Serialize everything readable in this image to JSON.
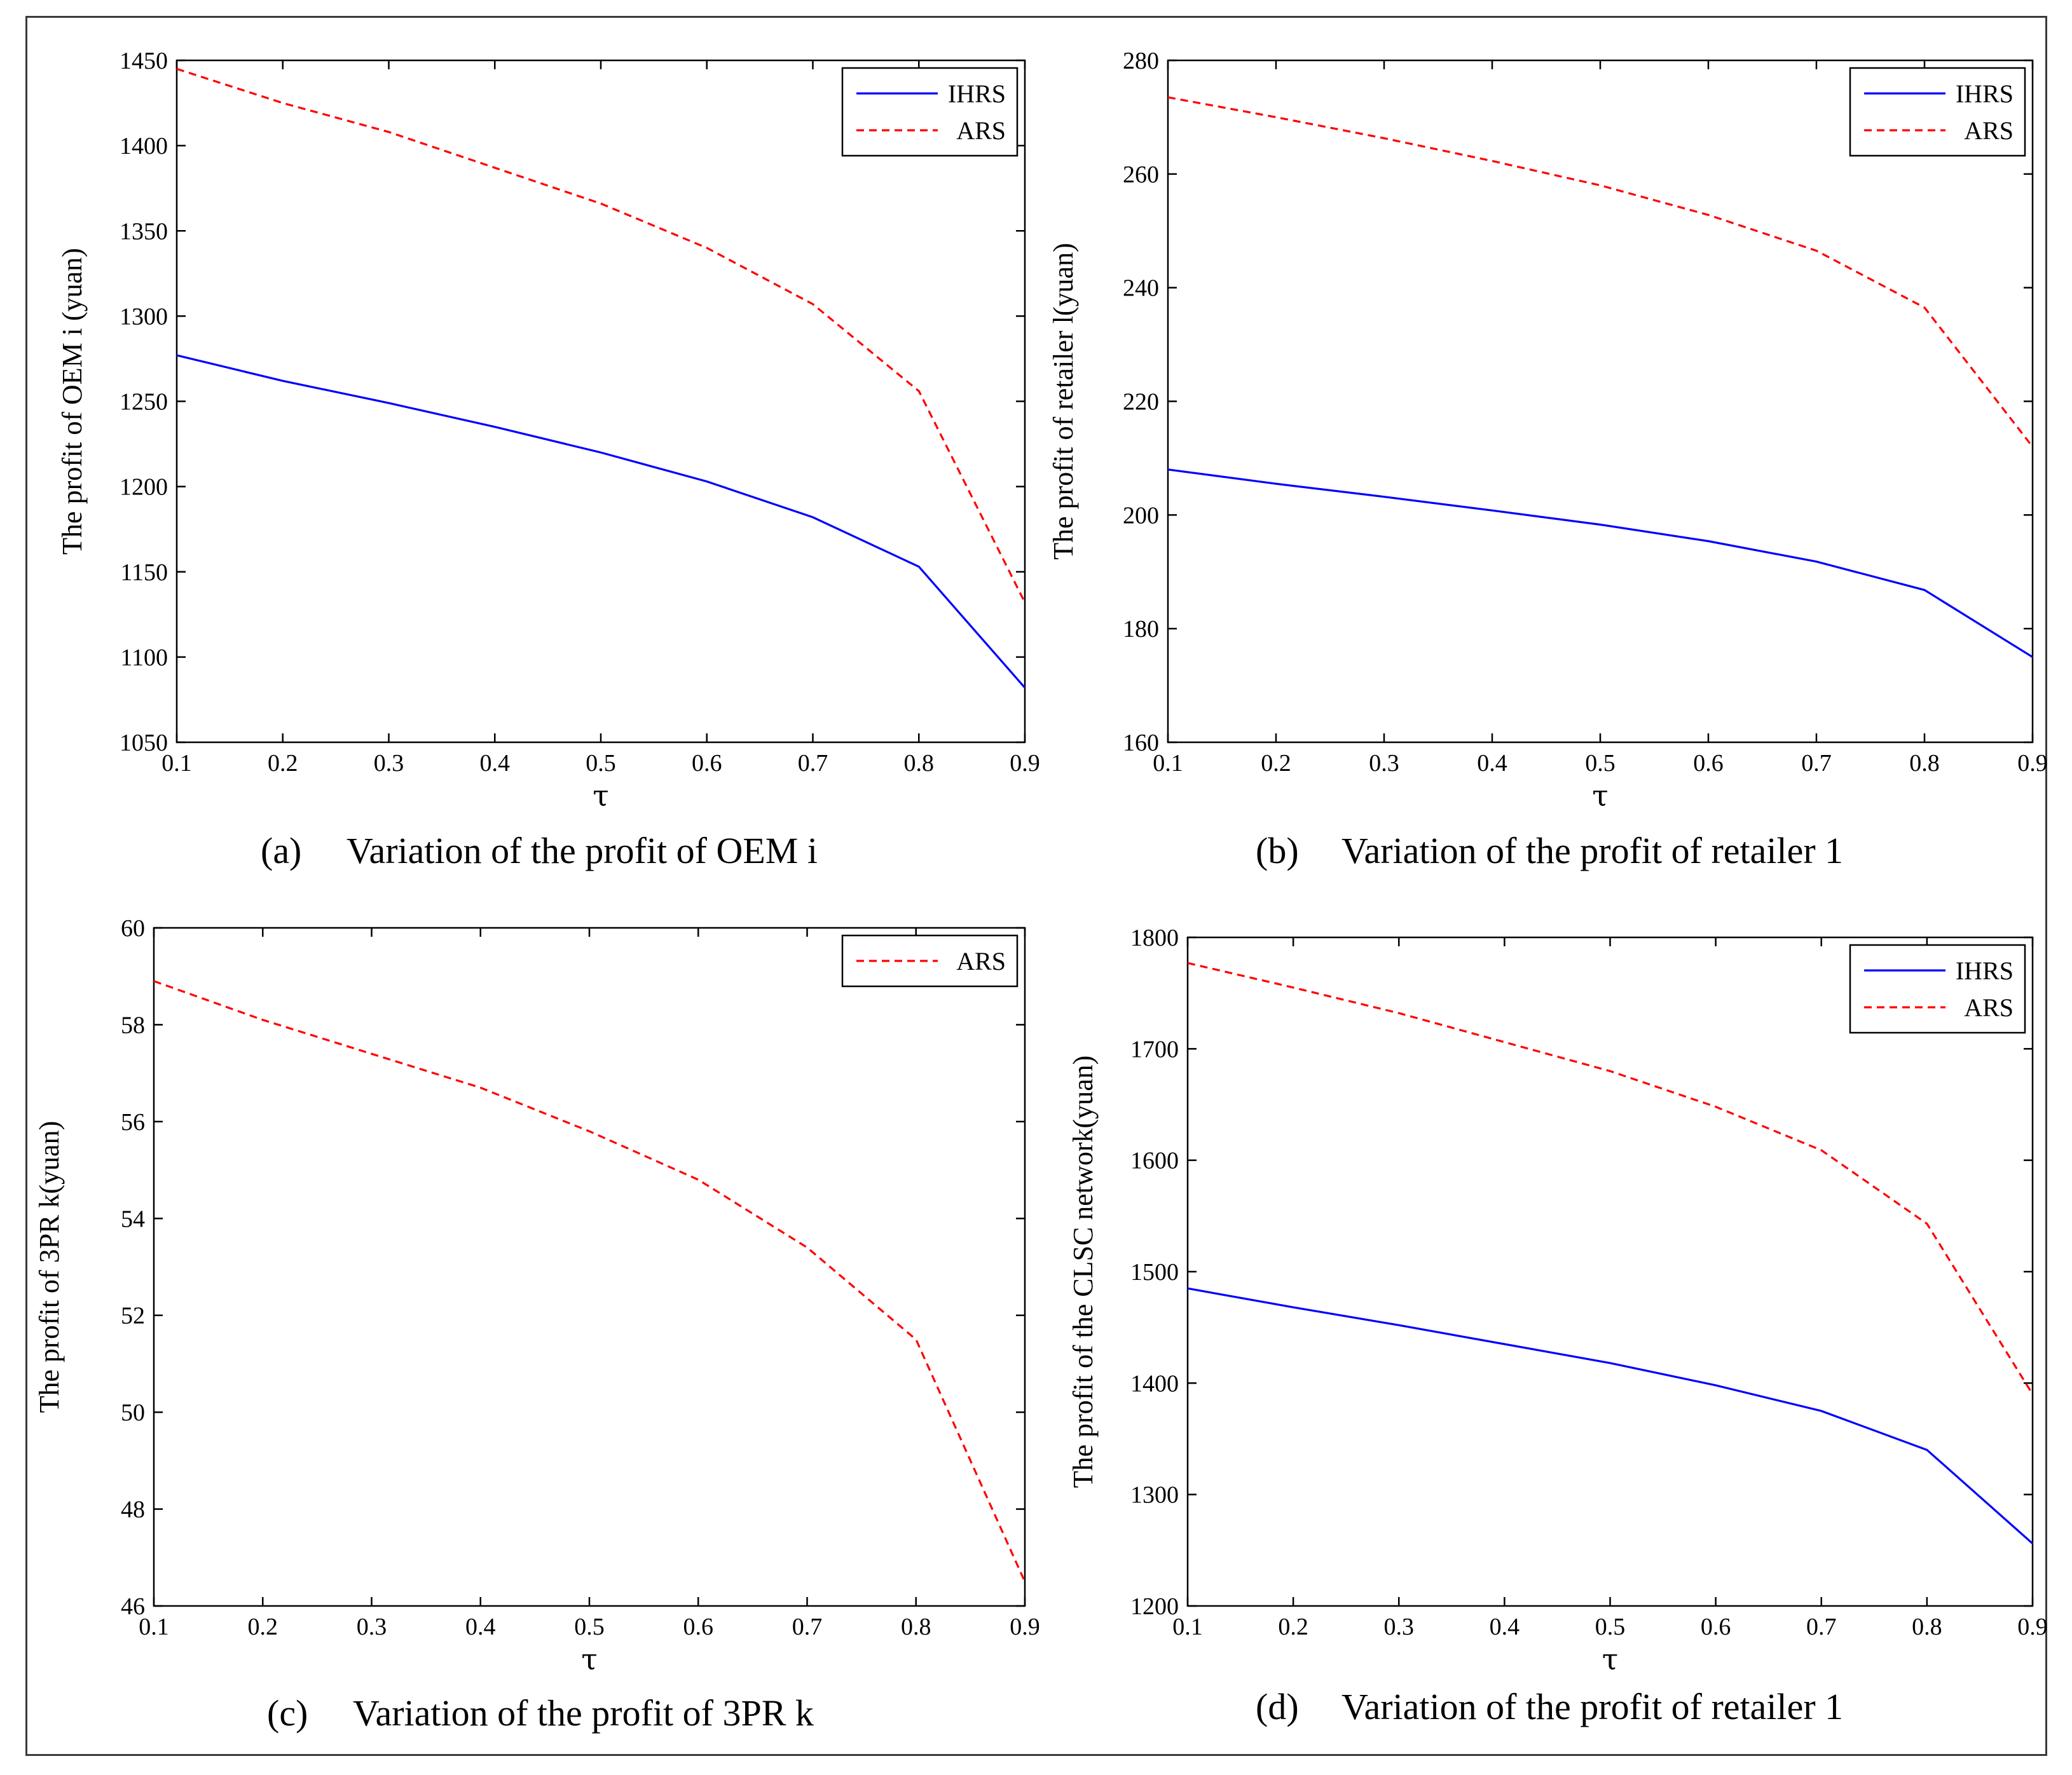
{
  "chart_data": [
    {
      "id": "a",
      "type": "line",
      "caption_tag": "(a)",
      "caption": "Variation of the profit of OEM i",
      "xlabel": "τ",
      "ylabel": "The profit of OEM i (yuan)",
      "x": [
        0.1,
        0.2,
        0.3,
        0.4,
        0.5,
        0.6,
        0.7,
        0.8,
        0.9
      ],
      "xlim": [
        0.1,
        0.9
      ],
      "ylim": [
        1050,
        1450
      ],
      "x_ticks": [
        "0.1",
        "0.2",
        "0.3",
        "0.4",
        "0.5",
        "0.6",
        "0.7",
        "0.8",
        "0.9"
      ],
      "y_ticks": [
        1050,
        1100,
        1150,
        1200,
        1250,
        1300,
        1350,
        1400,
        1450
      ],
      "legend_position": "top-right",
      "series": [
        {
          "name": "IHRS",
          "color": "#0000ff",
          "style": "solid",
          "values": [
            1277,
            1262,
            1249,
            1235,
            1220,
            1203,
            1182,
            1153,
            1082
          ]
        },
        {
          "name": "ARS",
          "color": "#ff0000",
          "style": "dashed",
          "values": [
            1445,
            1425,
            1408,
            1387,
            1366,
            1340,
            1307,
            1256,
            1132
          ]
        }
      ]
    },
    {
      "id": "b",
      "type": "line",
      "caption_tag": "(b)",
      "caption": "Variation of the profit of retailer 1",
      "xlabel": "τ",
      "ylabel": "The profit of retailer l(yuan)",
      "x": [
        0.1,
        0.2,
        0.3,
        0.4,
        0.5,
        0.6,
        0.7,
        0.8,
        0.9
      ],
      "xlim": [
        0.1,
        0.9
      ],
      "ylim": [
        160,
        280
      ],
      "x_ticks": [
        "0.1",
        "0.2",
        "0.3",
        "0.4",
        "0.5",
        "0.6",
        "0.7",
        "0.8",
        "0.9"
      ],
      "y_ticks": [
        160,
        180,
        200,
        220,
        240,
        260,
        280
      ],
      "legend_position": "top-right",
      "series": [
        {
          "name": "IHRS",
          "color": "#0000ff",
          "style": "solid",
          "values": [
            208,
            205.5,
            203.2,
            200.8,
            198.3,
            195.4,
            191.8,
            186.8,
            175
          ]
        },
        {
          "name": "ARS",
          "color": "#ff0000",
          "style": "dashed",
          "values": [
            273.5,
            270,
            266.3,
            262.3,
            258,
            252.8,
            246.5,
            236.5,
            212
          ]
        }
      ]
    },
    {
      "id": "c",
      "type": "line",
      "caption_tag": "(c)",
      "caption": "Variation of the profit of 3PR k",
      "xlabel": "τ",
      "ylabel": "The profit of 3PR k(yuan)",
      "x": [
        0.1,
        0.2,
        0.3,
        0.4,
        0.5,
        0.6,
        0.7,
        0.8,
        0.9
      ],
      "xlim": [
        0.1,
        0.9
      ],
      "ylim": [
        46,
        60
      ],
      "x_ticks": [
        "0.1",
        "0.2",
        "0.3",
        "0.4",
        "0.5",
        "0.6",
        "0.7",
        "0.8",
        "0.9"
      ],
      "y_ticks": [
        46,
        48,
        50,
        52,
        54,
        56,
        58,
        60
      ],
      "legend_position": "top-right",
      "series": [
        {
          "name": "ARS",
          "color": "#ff0000",
          "style": "dashed",
          "values": [
            58.9,
            58.1,
            57.4,
            56.7,
            55.8,
            54.8,
            53.4,
            51.5,
            46.5
          ]
        }
      ]
    },
    {
      "id": "d",
      "type": "line",
      "caption_tag": "(d)",
      "caption": "Variation of the profit of retailer 1",
      "xlabel": "τ",
      "ylabel": "The profit of the CLSC network(yuan)",
      "x": [
        0.1,
        0.2,
        0.3,
        0.4,
        0.5,
        0.6,
        0.7,
        0.8,
        0.9
      ],
      "xlim": [
        0.1,
        0.9
      ],
      "ylim": [
        1200,
        1800
      ],
      "x_ticks": [
        "0.1",
        "0.2",
        "0.3",
        "0.4",
        "0.5",
        "0.6",
        "0.7",
        "0.8",
        "0.9"
      ],
      "y_ticks": [
        1200,
        1300,
        1400,
        1500,
        1600,
        1700,
        1800
      ],
      "legend_position": "top-right",
      "series": [
        {
          "name": "IHRS",
          "color": "#0000ff",
          "style": "solid",
          "values": [
            1485,
            1468,
            1452,
            1435,
            1418,
            1398,
            1375,
            1340,
            1256
          ]
        },
        {
          "name": "ARS",
          "color": "#ff0000",
          "style": "dashed",
          "values": [
            1777,
            1755,
            1732,
            1706,
            1680,
            1648,
            1609,
            1543,
            1390
          ]
        }
      ]
    }
  ]
}
